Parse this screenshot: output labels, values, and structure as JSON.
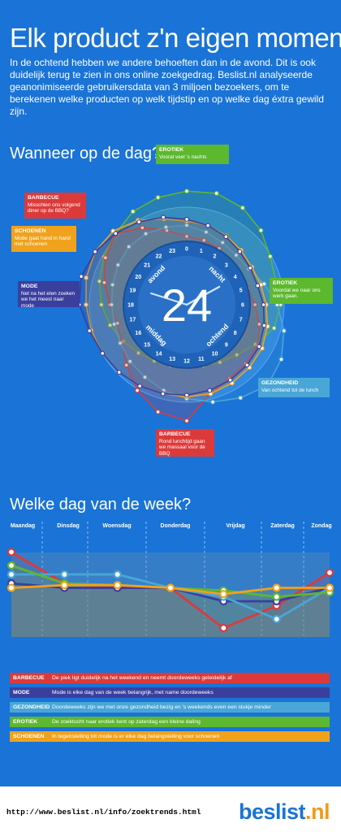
{
  "header": {
    "title": "Elk product z'n eigen moment",
    "intro": "In de ochtend hebben we andere behoeften dan in de avond. Dit is ook duidelijk terug te zien in ons online zoekgedrag. Beslist.nl analyseerde geanonimiseerde gebruikersdata van 3 miljoen bezoekers, om te berekenen welke producten op welk tijdstip en op welke dag éxtra gewild zijn."
  },
  "clock": {
    "heading": "Wanneer op de dag?",
    "center_label": "24",
    "segment_labels": [
      "nacht",
      "ochtend",
      "middag",
      "avond"
    ],
    "hours": [
      "0",
      "1",
      "2",
      "3",
      "4",
      "5",
      "6",
      "7",
      "8",
      "9",
      "10",
      "11",
      "12",
      "13",
      "14",
      "15",
      "16",
      "17",
      "18",
      "19",
      "20",
      "21",
      "22",
      "23"
    ]
  },
  "callouts": {
    "erotiek_night": {
      "title": "EROTIEK",
      "text": "Vooral veel 's nachts",
      "color": "#5cb82e"
    },
    "barbecue_evening": {
      "title": "BARBECUE",
      "text": "Misschien ons volgend diner op de BBQ?",
      "color": "#dc3a3a"
    },
    "schoenen": {
      "title": "SCHOENEN",
      "text": "Mode gaat hand in hand met schoenen",
      "color": "#f0a21c"
    },
    "mode": {
      "title": "MODE",
      "text": "Net na het eten zoeken we het meest naar mode",
      "color": "#3a3f9e"
    },
    "erotiek_work": {
      "title": "EROTIEK",
      "text": "Voordat we naar ons werk gaan.",
      "color": "#5cb82e"
    },
    "gezondheid": {
      "title": "GEZONDHEID",
      "text": "Van ochtend tot de lunch",
      "color": "#4aa6d6"
    },
    "barbecue_lunch": {
      "title": "BARBECUE",
      "text": "Rond lunchtijd gaan we massaal voor de BBQ",
      "color": "#dc3a3a"
    }
  },
  "weekly": {
    "heading": "Welke dag van de week?",
    "legend": [
      {
        "tag": "BARBECUE",
        "text": "De piek ligt duidelijk na het weekend en neemt doordeweeks geleidelijk af",
        "color": "#dc3a3a"
      },
      {
        "tag": "MODE",
        "text": "Mode is elke dag van de week belangrijk, met name doordeweeks",
        "color": "#3a3f9e"
      },
      {
        "tag": "GEZONDHEID",
        "text": "Doordeweeks zijn we met onze gezondheid bezig en 's weekends even een stukje minder",
        "color": "#4aa6d6"
      },
      {
        "tag": "EROTIEK",
        "text": "De zoektocht naar erotiek kent op zaterdag een kleine daling",
        "color": "#5cb82e"
      },
      {
        "tag": "SCHOENEN",
        "text": "In tegenstelling tot mode is er elke dag belangstelling voor schoenen",
        "color": "#f0a21c"
      }
    ]
  },
  "chart_data": [
    {
      "type": "line",
      "title": "Wanneer op de dag?",
      "x": [
        0,
        1,
        2,
        3,
        4,
        5,
        6,
        7,
        8,
        9,
        10,
        11,
        12,
        13,
        14,
        15,
        16,
        17,
        18,
        19,
        20,
        21,
        22,
        23
      ],
      "series": [
        {
          "name": "EROTIEK",
          "color": "#5cb82e",
          "values": [
            0.95,
            0.97,
            0.93,
            0.85,
            0.75,
            0.7,
            0.72,
            0.68,
            0.55,
            0.45,
            0.4,
            0.36,
            0.34,
            0.36,
            0.38,
            0.42,
            0.48,
            0.55,
            0.62,
            0.68,
            0.74,
            0.8,
            0.88,
            0.92
          ]
        },
        {
          "name": "BARBECUE",
          "color": "#dc3a3a",
          "values": [
            0.42,
            0.4,
            0.38,
            0.35,
            0.34,
            0.36,
            0.42,
            0.5,
            0.58,
            0.6,
            0.62,
            0.7,
            0.98,
            0.92,
            0.78,
            0.62,
            0.5,
            0.46,
            0.52,
            0.62,
            0.72,
            0.8,
            0.66,
            0.52
          ]
        },
        {
          "name": "GEZONDHEID",
          "color": "#4aa6d6",
          "values": [
            0.55,
            0.5,
            0.46,
            0.44,
            0.46,
            0.56,
            0.68,
            0.8,
            0.9,
            0.96,
            0.88,
            0.8,
            0.72,
            0.66,
            0.6,
            0.56,
            0.52,
            0.5,
            0.5,
            0.52,
            0.55,
            0.58,
            0.58,
            0.56
          ]
        },
        {
          "name": "SCHOENEN",
          "color": "#f0a21c",
          "values": [
            0.6,
            0.58,
            0.55,
            0.52,
            0.5,
            0.52,
            0.55,
            0.6,
            0.64,
            0.66,
            0.68,
            0.7,
            0.7,
            0.7,
            0.72,
            0.74,
            0.76,
            0.78,
            0.8,
            0.84,
            0.86,
            0.84,
            0.76,
            0.66
          ]
        },
        {
          "name": "MODE",
          "color": "#3a3f9e",
          "values": [
            0.62,
            0.58,
            0.54,
            0.5,
            0.48,
            0.48,
            0.52,
            0.56,
            0.6,
            0.62,
            0.64,
            0.66,
            0.68,
            0.7,
            0.72,
            0.74,
            0.76,
            0.8,
            0.88,
            0.9,
            0.86,
            0.8,
            0.74,
            0.68
          ]
        }
      ]
    },
    {
      "type": "line",
      "title": "Welke dag van de week?",
      "categories": [
        "Maandag",
        "Dinsdag",
        "Woensdag",
        "Donderdag",
        "Vrijdag",
        "Zaterdag",
        "Zondag"
      ],
      "series": [
        {
          "name": "BARBECUE",
          "color": "#dc3a3a",
          "values": [
            95,
            60,
            55,
            55,
            10,
            35,
            72
          ]
        },
        {
          "name": "MODE",
          "color": "#3a3f9e",
          "values": [
            60,
            55,
            55,
            55,
            40,
            40,
            55
          ]
        },
        {
          "name": "GEZONDHEID",
          "color": "#4aa6d6",
          "values": [
            70,
            70,
            70,
            55,
            45,
            20,
            55
          ]
        },
        {
          "name": "EROTIEK",
          "color": "#5cb82e",
          "values": [
            80,
            60,
            58,
            55,
            52,
            45,
            50
          ]
        },
        {
          "name": "SCHOENEN",
          "color": "#f0a21c",
          "values": [
            55,
            58,
            58,
            55,
            48,
            55,
            55
          ]
        }
      ],
      "ylim": [
        0,
        100
      ]
    }
  ],
  "footer": {
    "url": "http://www.beslist.nl/info/zoektrends.html",
    "logo_main": "beslist",
    "logo_suffix": ".nl"
  }
}
